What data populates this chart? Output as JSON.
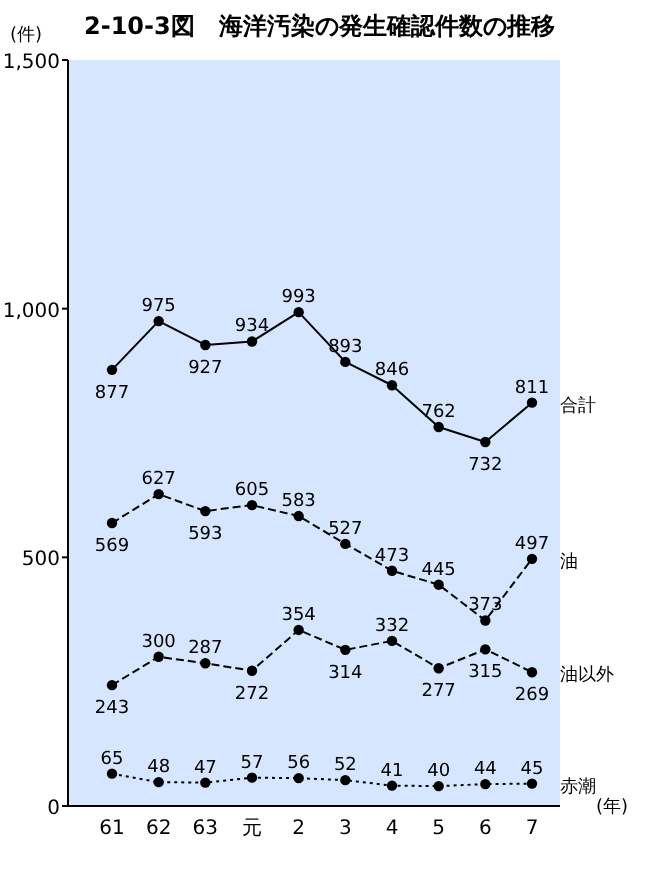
{
  "chart_data": {
    "type": "line",
    "title": "2-10-3図　海洋汚染の発生確認件数の推移",
    "ylabel": "(件)",
    "xlabel": "(年)",
    "categories": [
      "61",
      "62",
      "63",
      "元",
      "2",
      "3",
      "4",
      "5",
      "6",
      "7"
    ],
    "series": [
      {
        "name": "合計",
        "color": "#000000",
        "line_style": "solid",
        "values": [
          877,
          975,
          927,
          934,
          993,
          893,
          846,
          762,
          732,
          811
        ]
      },
      {
        "name": "油",
        "color": "#000000",
        "line_style": "dashed",
        "values": [
          569,
          627,
          593,
          605,
          583,
          527,
          473,
          445,
          373,
          497
        ]
      },
      {
        "name": "油以外",
        "color": "#000000",
        "line_style": "dashed",
        "values": [
          243,
          300,
          287,
          272,
          354,
          314,
          332,
          277,
          315,
          269
        ]
      },
      {
        "name": "赤潮",
        "color": "#000000",
        "line_style": "dotted",
        "values": [
          65,
          48,
          47,
          57,
          56,
          52,
          41,
          40,
          44,
          45
        ]
      }
    ],
    "ylim": [
      0,
      1500
    ],
    "yticks": [
      0,
      {
        "value": 500,
        "label": "500"
      },
      {
        "value": 1000,
        "label": "1,000"
      },
      {
        "value": 1500,
        "label": "1,500"
      }
    ],
    "marker": "circle",
    "data_labels": true,
    "grid": false
  }
}
